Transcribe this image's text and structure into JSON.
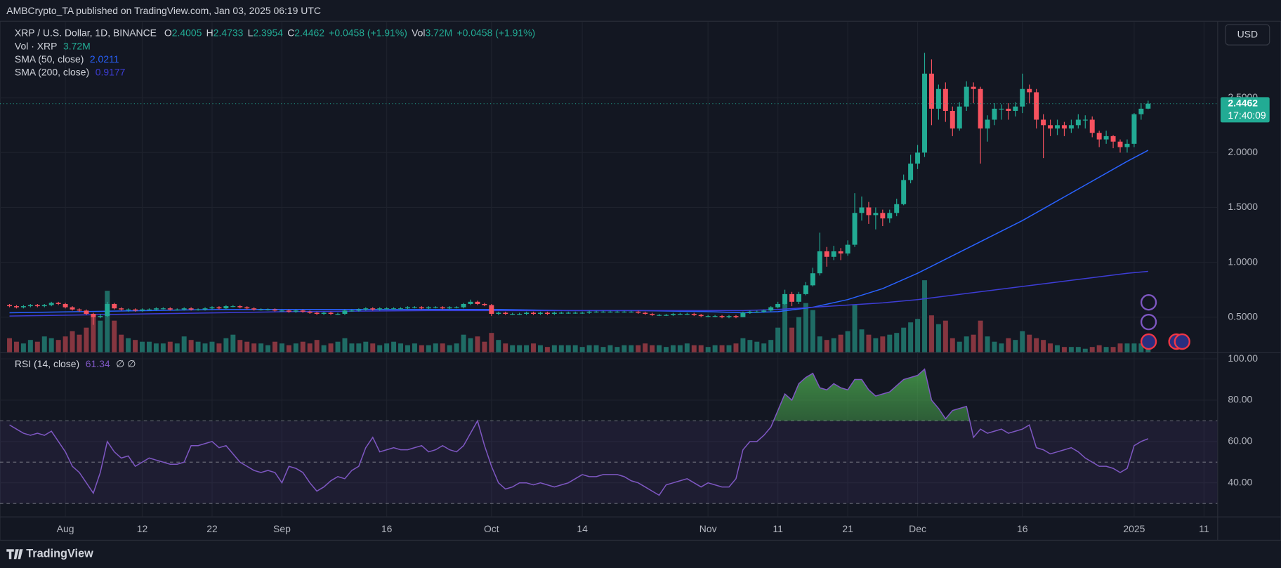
{
  "header": {
    "published": "AMBCrypto_TA published on TradingView.com, Jan 03, 2025 06:19 UTC",
    "brand": "TradingView"
  },
  "chart_data": {
    "type": "candlestick",
    "symbol": "XRP / U.S. Dollar, 1D, BINANCE",
    "ohlc_labels": [
      "O",
      "H",
      "L",
      "C"
    ],
    "change": "+0.0458 (+1.91%)",
    "currency": "USD",
    "countdown": "17:40:09",
    "up_color": "#22ab94",
    "down_color": "#f7525f",
    "xlim": [
      -1.36,
      172.9
    ],
    "xticks": [
      {
        "value": 8,
        "label": "Aug"
      },
      {
        "value": 19,
        "label": "12"
      },
      {
        "value": 29,
        "label": "22"
      },
      {
        "value": 39,
        "label": "Sep"
      },
      {
        "value": 54,
        "label": "16"
      },
      {
        "value": 69,
        "label": "Oct"
      },
      {
        "value": 82,
        "label": "14"
      },
      {
        "value": 100,
        "label": "Nov"
      },
      {
        "value": 110,
        "label": "11"
      },
      {
        "value": 120,
        "label": "21"
      },
      {
        "value": 130,
        "label": "Dec"
      },
      {
        "value": 145,
        "label": "16"
      },
      {
        "value": 161,
        "label": "2025"
      },
      {
        "value": 171,
        "label": "11"
      }
    ],
    "ylim": [
      0.18,
      3.19
    ],
    "yticks": [
      {
        "value": 0.5,
        "label": "0.5000"
      },
      {
        "value": 1,
        "label": "1.0000"
      },
      {
        "value": 1.5,
        "label": "1.5000"
      },
      {
        "value": 2,
        "label": "2.0000"
      },
      {
        "value": 2.5,
        "label": "2.5000"
      }
    ],
    "grid": true,
    "open": [
      0.61,
      0.6,
      0.59,
      0.6,
      0.61,
      0.6,
      0.61,
      0.63,
      0.62,
      0.59,
      0.57,
      0.56,
      0.53,
      0.5,
      0.51,
      0.62,
      0.58,
      0.57,
      0.57,
      0.56,
      0.57,
      0.57,
      0.58,
      0.58,
      0.57,
      0.57,
      0.58,
      0.57,
      0.57,
      0.58,
      0.59,
      0.58,
      0.6,
      0.6,
      0.59,
      0.58,
      0.57,
      0.57,
      0.57,
      0.56,
      0.56,
      0.55,
      0.56,
      0.55,
      0.54,
      0.53,
      0.54,
      0.53,
      0.53,
      0.56,
      0.56,
      0.57,
      0.58,
      0.57,
      0.58,
      0.58,
      0.58,
      0.58,
      0.59,
      0.59,
      0.58,
      0.59,
      0.59,
      0.58,
      0.59,
      0.59,
      0.62,
      0.64,
      0.62,
      0.61,
      0.53,
      0.54,
      0.53,
      0.53,
      0.53,
      0.54,
      0.53,
      0.54,
      0.53,
      0.54,
      0.54,
      0.54,
      0.54,
      0.54,
      0.55,
      0.55,
      0.55,
      0.55,
      0.55,
      0.55,
      0.55,
      0.54,
      0.53,
      0.52,
      0.52,
      0.52,
      0.53,
      0.53,
      0.53,
      0.52,
      0.51,
      0.51,
      0.51,
      0.5,
      0.51,
      0.5,
      0.54,
      0.55,
      0.55,
      0.56,
      0.59,
      0.62,
      0.71,
      0.64,
      0.71,
      0.79,
      0.9,
      1.1,
      1.05,
      1.1,
      1.08,
      1.16,
      1.45,
      1.5,
      1.43,
      1.45,
      1.4,
      1.45,
      1.53,
      1.75,
      1.9,
      2.0,
      2.72,
      2.4,
      2.58,
      2.38,
      2.22,
      2.42,
      2.6,
      2.58,
      2.22,
      2.3,
      2.4,
      2.4,
      2.38,
      2.42,
      2.58,
      2.55,
      2.3,
      2.25,
      2.22,
      2.25,
      2.22,
      2.25,
      2.3,
      2.3,
      2.18,
      2.12,
      2.15,
      2.1,
      2.05,
      2.08,
      2.35,
      2.4005
    ],
    "high": [
      0.62,
      0.61,
      0.61,
      0.62,
      0.62,
      0.62,
      0.64,
      0.64,
      0.63,
      0.6,
      0.58,
      0.57,
      0.54,
      0.53,
      0.64,
      0.63,
      0.59,
      0.58,
      0.58,
      0.58,
      0.58,
      0.59,
      0.59,
      0.59,
      0.58,
      0.59,
      0.59,
      0.58,
      0.59,
      0.6,
      0.6,
      0.61,
      0.61,
      0.61,
      0.6,
      0.59,
      0.58,
      0.58,
      0.58,
      0.57,
      0.57,
      0.57,
      0.57,
      0.56,
      0.55,
      0.55,
      0.55,
      0.54,
      0.57,
      0.57,
      0.58,
      0.59,
      0.59,
      0.59,
      0.59,
      0.59,
      0.59,
      0.6,
      0.6,
      0.6,
      0.6,
      0.6,
      0.6,
      0.6,
      0.6,
      0.63,
      0.66,
      0.65,
      0.63,
      0.62,
      0.55,
      0.55,
      0.54,
      0.54,
      0.55,
      0.55,
      0.55,
      0.55,
      0.55,
      0.55,
      0.55,
      0.55,
      0.55,
      0.56,
      0.56,
      0.56,
      0.56,
      0.56,
      0.56,
      0.56,
      0.56,
      0.55,
      0.54,
      0.53,
      0.53,
      0.54,
      0.54,
      0.54,
      0.54,
      0.53,
      0.52,
      0.52,
      0.52,
      0.52,
      0.52,
      0.55,
      0.56,
      0.56,
      0.57,
      0.6,
      0.64,
      0.75,
      0.73,
      0.73,
      0.82,
      0.95,
      1.27,
      1.14,
      1.15,
      1.13,
      1.2,
      1.63,
      1.6,
      1.55,
      1.5,
      1.48,
      1.48,
      1.58,
      1.8,
      1.98,
      2.07,
      2.91,
      2.85,
      2.62,
      2.64,
      2.42,
      2.46,
      2.65,
      2.64,
      2.6,
      2.34,
      2.45,
      2.44,
      2.45,
      2.46,
      2.72,
      2.62,
      2.58,
      2.35,
      2.3,
      2.3,
      2.28,
      2.3,
      2.35,
      2.34,
      2.33,
      2.2,
      2.2,
      2.16,
      2.12,
      2.12,
      2.36,
      2.45,
      2.4733
    ],
    "low": [
      0.59,
      0.58,
      0.58,
      0.59,
      0.59,
      0.59,
      0.6,
      0.61,
      0.58,
      0.56,
      0.55,
      0.52,
      0.43,
      0.49,
      0.5,
      0.57,
      0.56,
      0.55,
      0.55,
      0.55,
      0.56,
      0.56,
      0.57,
      0.56,
      0.56,
      0.56,
      0.56,
      0.56,
      0.56,
      0.57,
      0.57,
      0.57,
      0.59,
      0.58,
      0.57,
      0.56,
      0.56,
      0.56,
      0.55,
      0.55,
      0.54,
      0.54,
      0.54,
      0.53,
      0.52,
      0.52,
      0.52,
      0.52,
      0.52,
      0.55,
      0.55,
      0.56,
      0.56,
      0.56,
      0.57,
      0.57,
      0.57,
      0.57,
      0.58,
      0.57,
      0.57,
      0.58,
      0.57,
      0.57,
      0.58,
      0.58,
      0.61,
      0.61,
      0.6,
      0.51,
      0.52,
      0.52,
      0.52,
      0.52,
      0.52,
      0.52,
      0.52,
      0.52,
      0.52,
      0.53,
      0.53,
      0.53,
      0.53,
      0.53,
      0.54,
      0.54,
      0.54,
      0.54,
      0.54,
      0.54,
      0.53,
      0.52,
      0.51,
      0.51,
      0.51,
      0.51,
      0.52,
      0.52,
      0.51,
      0.5,
      0.5,
      0.5,
      0.49,
      0.49,
      0.49,
      0.5,
      0.53,
      0.54,
      0.54,
      0.55,
      0.58,
      0.61,
      0.6,
      0.62,
      0.7,
      0.78,
      0.88,
      0.96,
      1.02,
      1.02,
      1.06,
      1.14,
      1.38,
      1.35,
      1.3,
      1.33,
      1.36,
      1.42,
      1.52,
      1.72,
      1.85,
      1.96,
      2.25,
      2.3,
      2.28,
      2.15,
      2.2,
      2.38,
      2.45,
      1.9,
      2.1,
      2.25,
      2.3,
      2.3,
      2.33,
      2.36,
      2.45,
      2.22,
      1.95,
      2.15,
      2.16,
      2.15,
      2.18,
      2.22,
      2.22,
      2.14,
      2.05,
      2.08,
      2.04,
      2.0,
      2.0,
      2.05,
      2.3,
      2.3954
    ],
    "close": [
      0.6,
      0.59,
      0.6,
      0.61,
      0.6,
      0.61,
      0.63,
      0.62,
      0.59,
      0.57,
      0.56,
      0.53,
      0.5,
      0.51,
      0.62,
      0.58,
      0.57,
      0.57,
      0.56,
      0.57,
      0.57,
      0.58,
      0.58,
      0.57,
      0.57,
      0.58,
      0.57,
      0.57,
      0.58,
      0.59,
      0.58,
      0.6,
      0.6,
      0.59,
      0.58,
      0.57,
      0.57,
      0.57,
      0.56,
      0.56,
      0.55,
      0.56,
      0.55,
      0.54,
      0.53,
      0.54,
      0.53,
      0.53,
      0.56,
      0.56,
      0.57,
      0.58,
      0.57,
      0.58,
      0.58,
      0.58,
      0.58,
      0.59,
      0.59,
      0.58,
      0.59,
      0.59,
      0.58,
      0.59,
      0.59,
      0.62,
      0.64,
      0.62,
      0.61,
      0.53,
      0.54,
      0.53,
      0.53,
      0.53,
      0.54,
      0.53,
      0.54,
      0.53,
      0.54,
      0.54,
      0.54,
      0.54,
      0.54,
      0.55,
      0.55,
      0.55,
      0.55,
      0.55,
      0.55,
      0.55,
      0.54,
      0.53,
      0.52,
      0.52,
      0.52,
      0.53,
      0.53,
      0.53,
      0.52,
      0.51,
      0.51,
      0.51,
      0.5,
      0.51,
      0.5,
      0.54,
      0.55,
      0.55,
      0.56,
      0.59,
      0.62,
      0.71,
      0.64,
      0.71,
      0.79,
      0.9,
      1.1,
      1.05,
      1.1,
      1.08,
      1.16,
      1.45,
      1.5,
      1.43,
      1.45,
      1.4,
      1.45,
      1.53,
      1.75,
      1.9,
      2.0,
      2.72,
      2.4,
      2.58,
      2.38,
      2.22,
      2.42,
      2.6,
      2.58,
      2.22,
      2.3,
      2.4,
      2.4,
      2.38,
      2.42,
      2.58,
      2.55,
      2.3,
      2.25,
      2.22,
      2.25,
      2.22,
      2.25,
      2.3,
      2.3,
      2.18,
      2.12,
      2.15,
      2.1,
      2.05,
      2.08,
      2.35,
      2.4,
      2.4462
    ],
    "volume": {
      "name": "Vol · XRP",
      "label": "Vol",
      "value_label": "3.72M",
      "up_color": "#1f6c65",
      "down_color": "#863640",
      "ylim": [
        0,
        188
      ],
      "values": [
        8,
        6,
        5,
        7,
        6,
        9,
        8,
        7,
        9,
        12,
        10,
        14,
        21,
        18,
        35,
        18,
        10,
        8,
        7,
        6,
        6,
        5,
        5,
        6,
        5,
        9,
        7,
        6,
        5,
        6,
        5,
        8,
        10,
        7,
        6,
        5,
        5,
        4,
        6,
        5,
        4,
        5,
        6,
        5,
        7,
        4,
        5,
        6,
        8,
        5,
        5,
        6,
        5,
        4,
        5,
        6,
        5,
        4,
        5,
        4,
        4,
        5,
        5,
        4,
        5,
        10,
        8,
        9,
        6,
        11,
        7,
        5,
        4,
        4,
        4,
        5,
        4,
        3,
        4,
        4,
        4,
        4,
        3,
        4,
        4,
        3,
        4,
        3,
        4,
        4,
        4,
        5,
        4,
        4,
        3,
        4,
        4,
        5,
        4,
        4,
        3,
        4,
        4,
        4,
        5,
        8,
        7,
        6,
        5,
        7,
        14,
        28,
        14,
        20,
        28,
        24,
        9,
        7,
        8,
        10,
        12,
        27,
        13,
        10,
        8,
        9,
        10,
        11,
        14,
        17,
        19,
        41,
        21,
        16,
        18,
        8,
        6,
        9,
        10,
        18,
        9,
        6,
        5,
        8,
        7,
        12,
        10,
        8,
        7,
        5,
        4,
        3,
        3,
        3,
        2,
        3,
        4,
        3,
        3,
        5,
        5,
        5,
        5,
        3.72
      ]
    },
    "overlays": [
      {
        "name": "SMA (50, close)",
        "color": "#2962ff",
        "x": [
          0,
          10,
          20,
          30,
          40,
          50,
          60,
          70,
          80,
          90,
          100,
          105,
          110,
          115,
          120,
          125,
          130,
          135,
          140,
          145,
          150,
          155,
          160,
          163
        ],
        "values": [
          0.54,
          0.55,
          0.56,
          0.57,
          0.57,
          0.57,
          0.57,
          0.57,
          0.56,
          0.56,
          0.55,
          0.54,
          0.55,
          0.59,
          0.66,
          0.76,
          0.9,
          1.06,
          1.22,
          1.38,
          1.56,
          1.74,
          1.92,
          2.0211
        ]
      },
      {
        "name": "SMA (200, close)",
        "color": "#3d3dd6",
        "x": [
          0,
          10,
          20,
          30,
          40,
          50,
          60,
          70,
          80,
          90,
          100,
          105,
          110,
          115,
          120,
          125,
          130,
          135,
          140,
          145,
          150,
          155,
          160,
          163
        ],
        "values": [
          0.51,
          0.52,
          0.53,
          0.54,
          0.55,
          0.555,
          0.56,
          0.56,
          0.56,
          0.56,
          0.56,
          0.56,
          0.57,
          0.59,
          0.61,
          0.63,
          0.66,
          0.7,
          0.74,
          0.78,
          0.82,
          0.86,
          0.9,
          0.9177
        ]
      }
    ],
    "rsi": {
      "name": "RSI (14, close)",
      "extra": "∅ ∅",
      "color": "#7e57c2",
      "ylim": [
        23.7,
        102.8
      ],
      "yticks": [
        {
          "value": 40,
          "label": "40.00"
        },
        {
          "value": 60,
          "label": "60.00"
        },
        {
          "value": 80,
          "label": "80.00"
        },
        {
          "value": 100,
          "label": "100.00"
        }
      ],
      "bands": [
        30,
        50,
        70
      ],
      "values": [
        68,
        66,
        64,
        63,
        64,
        63,
        65,
        60,
        55,
        48,
        45,
        40,
        35,
        45,
        60,
        55,
        52,
        53,
        48,
        50,
        52,
        51,
        50,
        49,
        49,
        50,
        58,
        58,
        59,
        60,
        57,
        58,
        54,
        50,
        48,
        46,
        45,
        46,
        45,
        40,
        48,
        47,
        45,
        40,
        36,
        38,
        41,
        43,
        42,
        46,
        48,
        57,
        62,
        55,
        56,
        57,
        56,
        56,
        57,
        58,
        55,
        56,
        58,
        56,
        55,
        58,
        64,
        70,
        58,
        48,
        40,
        37,
        38,
        40,
        40,
        39,
        40,
        39,
        38,
        39,
        40,
        42,
        44,
        43,
        43,
        44,
        44,
        44,
        43,
        41,
        40,
        38,
        36,
        34,
        39,
        40,
        41,
        42,
        40,
        38,
        40,
        39,
        38,
        38,
        42,
        56,
        60,
        60,
        63,
        67,
        75,
        83,
        80,
        88,
        91,
        93,
        86,
        85,
        88,
        86,
        85,
        90,
        90,
        85,
        82,
        83,
        84,
        87,
        90,
        91,
        92,
        95,
        80,
        76,
        71,
        75,
        76,
        77,
        62,
        66,
        64,
        65,
        66,
        64,
        65,
        66,
        68,
        57,
        56,
        54,
        55,
        56,
        57,
        55,
        52,
        50,
        48,
        48,
        47,
        45,
        47,
        58,
        60,
        61.34
      ]
    }
  }
}
